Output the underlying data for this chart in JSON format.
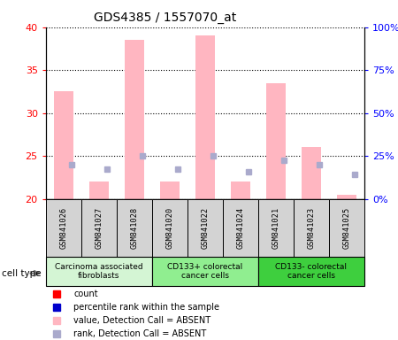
{
  "title": "GDS4385 / 1557070_at",
  "samples": [
    "GSM841026",
    "GSM841027",
    "GSM841028",
    "GSM841020",
    "GSM841022",
    "GSM841024",
    "GSM841021",
    "GSM841023",
    "GSM841025"
  ],
  "groups": [
    {
      "name": "Carcinoma associated\nfibroblasts",
      "start": 0,
      "end": 3,
      "color": "#d4f5d4"
    },
    {
      "name": "CD133+ colorectal\ncancer cells",
      "start": 3,
      "end": 6,
      "color": "#90ee90"
    },
    {
      "name": "CD133- colorectal\ncancer cells",
      "start": 6,
      "end": 9,
      "color": "#3ecf3e"
    }
  ],
  "bar_values": [
    32.5,
    22.0,
    38.5,
    22.0,
    39.0,
    22.0,
    33.5,
    26.0,
    20.5
  ],
  "rank_values": [
    24.0,
    23.5,
    25.0,
    23.5,
    25.0,
    23.2,
    24.5,
    24.0,
    22.8
  ],
  "ylim_left": [
    20,
    40
  ],
  "ylim_right": [
    0,
    100
  ],
  "yticks_left": [
    20,
    25,
    30,
    35,
    40
  ],
  "yticks_right": [
    0,
    25,
    50,
    75,
    100
  ],
  "bar_color": "#ffb6c1",
  "rank_color": "#aaaacc",
  "grid_color": "#000000",
  "legend_items": [
    {
      "label": "count",
      "color": "#ff0000"
    },
    {
      "label": "percentile rank within the sample",
      "color": "#0000cc"
    },
    {
      "label": "value, Detection Call = ABSENT",
      "color": "#ffb6c1"
    },
    {
      "label": "rank, Detection Call = ABSENT",
      "color": "#aaaacc"
    }
  ]
}
